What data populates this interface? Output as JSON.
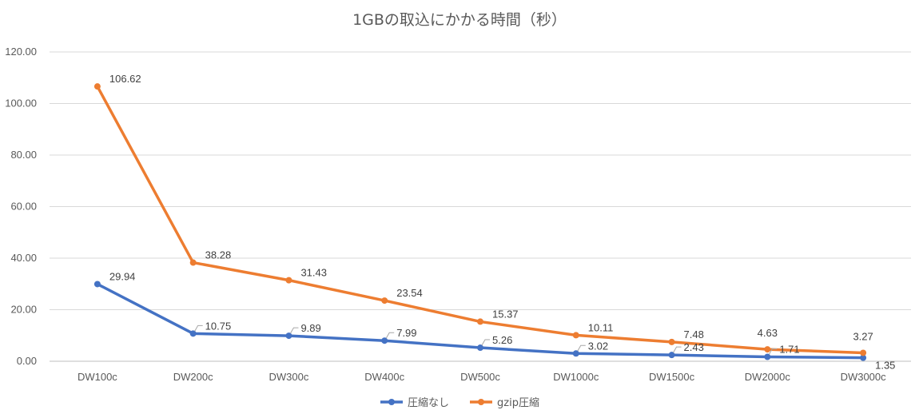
{
  "chart_data": {
    "type": "line",
    "title": "1GBの取込にかかる時間（秒）",
    "categories": [
      "DW100c",
      "DW200c",
      "DW300c",
      "DW400c",
      "DW500c",
      "DW1000c",
      "DW1500c",
      "DW2000c",
      "DW3000c"
    ],
    "series": [
      {
        "name": "圧縮なし",
        "color": "#4472C4",
        "values": [
          29.94,
          10.75,
          9.89,
          7.99,
          5.26,
          3.02,
          2.43,
          1.71,
          1.35
        ],
        "labels": [
          "29.94",
          "10.75",
          "9.89",
          "7.99",
          "5.26",
          "3.02",
          "2.43",
          "1.71",
          "1.35"
        ]
      },
      {
        "name": "gzip圧縮",
        "color": "#ED7D31",
        "values": [
          106.62,
          38.28,
          31.43,
          23.54,
          15.37,
          10.11,
          7.48,
          4.63,
          3.27
        ],
        "labels": [
          "106.62",
          "38.28",
          "31.43",
          "23.54",
          "15.37",
          "10.11",
          "7.48",
          "4.63",
          "3.27"
        ]
      }
    ],
    "yticks": [
      "0.00",
      "20.00",
      "40.00",
      "60.00",
      "80.00",
      "100.00",
      "120.00"
    ],
    "ylim": [
      0,
      120
    ],
    "grid": true,
    "legend": "bottom"
  }
}
